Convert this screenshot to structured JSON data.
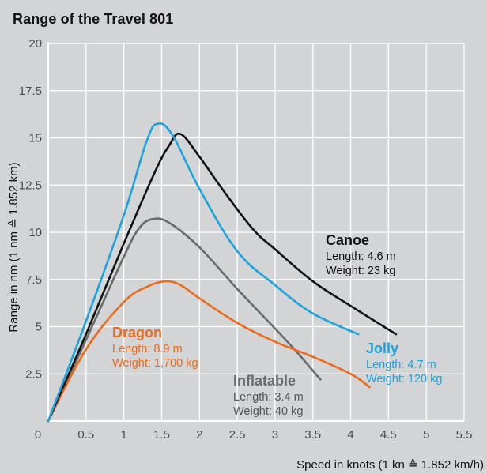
{
  "chart_data": {
    "type": "line",
    "title": "Range of the Travel 801",
    "xlabel": "Speed in knots (1 kn ≙ 1.852 km/h)",
    "ylabel": "Range in nm (1 nm ≙ 1.852 km)",
    "xlim": [
      0,
      5.5
    ],
    "ylim": [
      0,
      20
    ],
    "x_ticks": [
      "0",
      "0.5",
      "1",
      "1.5",
      "2",
      "2.5",
      "3",
      "3.5",
      "4",
      "4.5",
      "5",
      "5.5"
    ],
    "y_ticks": [
      "2.5",
      "5",
      "7.5",
      "10",
      "12.5",
      "15",
      "17.5",
      "20"
    ],
    "grid": true,
    "series": [
      {
        "name": "Canoe",
        "details": [
          "Length: 4.6 m",
          "Weight: 23 kg"
        ],
        "color": "#111111",
        "points": [
          [
            0,
            0
          ],
          [
            0.5,
            4.6
          ],
          [
            1,
            9.4
          ],
          [
            1.4,
            13.1
          ],
          [
            1.6,
            14.6
          ],
          [
            1.75,
            15.2
          ],
          [
            2,
            14
          ],
          [
            2.3,
            12.3
          ],
          [
            2.7,
            10.2
          ],
          [
            3,
            9.1
          ],
          [
            3.5,
            7.4
          ],
          [
            4,
            6.1
          ],
          [
            4.6,
            4.6
          ]
        ]
      },
      {
        "name": "Jolly",
        "details": [
          "Length: 4.7 m",
          "Weight: 120 kg"
        ],
        "color": "#1ba3dc",
        "points": [
          [
            0,
            0
          ],
          [
            0.5,
            5.3
          ],
          [
            1,
            10.9
          ],
          [
            1.3,
            14.8
          ],
          [
            1.45,
            15.75
          ],
          [
            1.65,
            15.1
          ],
          [
            2,
            12.3
          ],
          [
            2.5,
            9
          ],
          [
            3,
            7.2
          ],
          [
            3.5,
            5.7
          ],
          [
            4.1,
            4.6
          ]
        ]
      },
      {
        "name": "Inflatable",
        "details": [
          "Length: 3.4 m",
          "Weight: 40 kg"
        ],
        "color": "#6a6a6a",
        "points": [
          [
            0,
            0
          ],
          [
            0.5,
            4.3
          ],
          [
            1,
            8.7
          ],
          [
            1.2,
            10.2
          ],
          [
            1.38,
            10.7
          ],
          [
            1.6,
            10.5
          ],
          [
            2,
            9.2
          ],
          [
            2.5,
            7
          ],
          [
            3,
            4.9
          ],
          [
            3.3,
            3.6
          ],
          [
            3.6,
            2.2
          ]
        ]
      },
      {
        "name": "Dragon",
        "details": [
          "Length: 8.9 m",
          "Weight: 1,700 kg"
        ],
        "color": "#ec6b1c",
        "points": [
          [
            0,
            0
          ],
          [
            0.5,
            3.8
          ],
          [
            1,
            6.3
          ],
          [
            1.3,
            7.1
          ],
          [
            1.55,
            7.4
          ],
          [
            1.75,
            7.2
          ],
          [
            2,
            6.5
          ],
          [
            2.5,
            5.2
          ],
          [
            3,
            4.2
          ],
          [
            3.5,
            3.4
          ],
          [
            4,
            2.5
          ],
          [
            4.25,
            1.8
          ]
        ]
      }
    ]
  }
}
